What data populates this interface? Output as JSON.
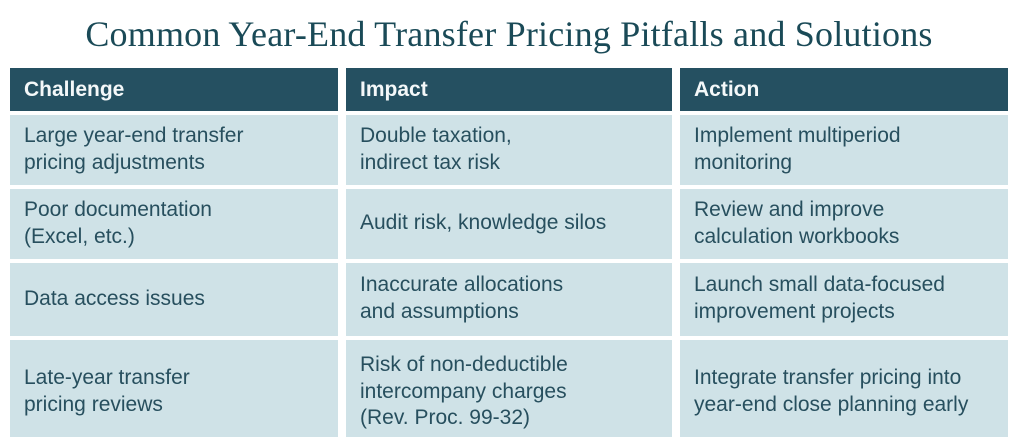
{
  "title": "Common Year-End Transfer Pricing Pitfalls and Solutions",
  "colors": {
    "header_background": "#255061",
    "header_text": "#f4f8f9",
    "row_background": "#cfe2e7",
    "cell_text": "#274f5e",
    "title_text": "#1a4a57",
    "page_background": "#ffffff"
  },
  "table": {
    "columns": [
      "Challenge",
      "Impact",
      "Action"
    ],
    "rows": [
      [
        "Large year-end transfer\npricing adjustments",
        "Double taxation,\nindirect tax risk",
        "Implement multiperiod\nmonitoring"
      ],
      [
        "Poor documentation\n(Excel, etc.)",
        "Audit risk, knowledge silos",
        "Review and improve\ncalculation workbooks"
      ],
      [
        "Data access issues",
        "Inaccurate allocations\nand assumptions",
        "Launch small data-focused\nimprovement projects"
      ],
      [
        "Late-year transfer\npricing reviews",
        "Risk of non-deductible\nintercompany charges\n(Rev. Proc. 99-32)",
        "Integrate transfer pricing into\nyear-end close planning early"
      ]
    ]
  },
  "chart_data": {
    "type": "table",
    "title": "Common Year-End Transfer Pricing Pitfalls and Solutions",
    "columns": [
      "Challenge",
      "Impact",
      "Action"
    ],
    "rows": [
      {
        "challenge": "Large year-end transfer pricing adjustments",
        "impact": "Double taxation, indirect tax risk",
        "action": "Implement multiperiod monitoring"
      },
      {
        "challenge": "Poor documentation (Excel, etc.)",
        "impact": "Audit risk, knowledge silos",
        "action": "Review and improve calculation workbooks"
      },
      {
        "challenge": "Data access issues",
        "impact": "Inaccurate allocations and assumptions",
        "action": "Launch small data-focused improvement projects"
      },
      {
        "challenge": "Late-year transfer pricing reviews",
        "impact": "Risk of non-deductible intercompany charges (Rev. Proc. 99-32)",
        "action": "Integrate transfer pricing into year-end close planning early"
      }
    ],
    "layout": "header row dark teal, body rows light blue, white gutters between all cells"
  }
}
